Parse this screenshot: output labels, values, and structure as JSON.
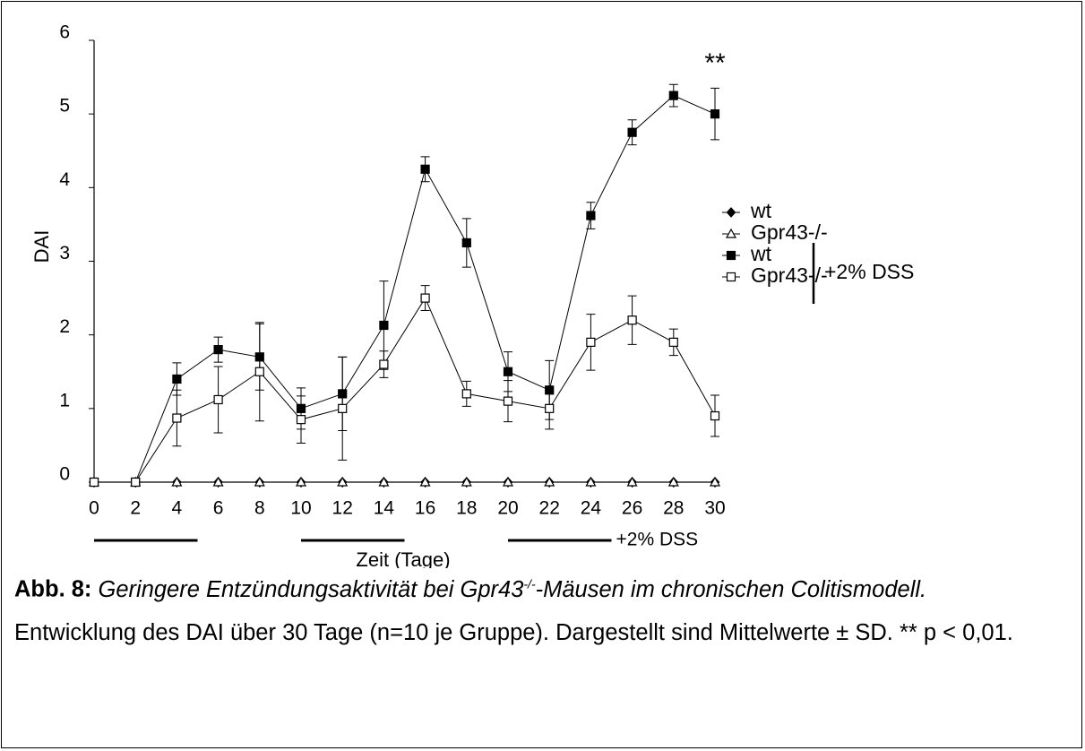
{
  "chart_data": {
    "type": "line",
    "y_label": "DAI",
    "x_label": "Zeit (Tage)",
    "x": [
      0,
      2,
      4,
      6,
      8,
      10,
      12,
      14,
      16,
      18,
      20,
      22,
      24,
      26,
      28,
      30
    ],
    "xlim": [
      0,
      30
    ],
    "ylim": [
      0,
      6
    ],
    "xticks": [
      0,
      2,
      4,
      6,
      8,
      10,
      12,
      14,
      16,
      18,
      20,
      22,
      24,
      26,
      28,
      30
    ],
    "yticks": [
      0,
      1,
      2,
      3,
      4,
      5,
      6
    ],
    "series": [
      {
        "name": "wt",
        "marker": "diamond",
        "filled": true,
        "color": "#000000",
        "values": [
          0,
          0,
          0,
          0,
          0,
          0,
          0,
          0,
          0,
          0,
          0,
          0,
          0,
          0,
          0,
          0
        ]
      },
      {
        "name": "Gpr43-/-",
        "marker": "triangle",
        "filled": false,
        "color": "#000000",
        "values": [
          0,
          0,
          0,
          0,
          0,
          0,
          0,
          0,
          0,
          0,
          0,
          0,
          0,
          0,
          0,
          0
        ]
      },
      {
        "name": "wt",
        "marker": "square",
        "filled": true,
        "color": "#000000",
        "values": [
          0,
          0,
          1.4,
          1.8,
          1.7,
          1.0,
          1.2,
          2.13,
          4.25,
          3.25,
          1.5,
          1.25,
          3.62,
          4.75,
          5.25,
          5.0
        ],
        "errors": [
          0,
          0,
          0.22,
          0.17,
          0.45,
          0.28,
          0.5,
          0.6,
          0.17,
          0.33,
          0.27,
          0.4,
          0.18,
          0.17,
          0.15,
          0.35
        ]
      },
      {
        "name": "Gpr43-/-",
        "marker": "square",
        "filled": false,
        "color": "#000000",
        "values": [
          0,
          0,
          0.87,
          1.12,
          1.5,
          0.85,
          1.0,
          1.6,
          2.5,
          1.2,
          1.1,
          1.0,
          1.9,
          2.2,
          1.9,
          0.9
        ],
        "errors": [
          0,
          0,
          0.38,
          0.45,
          0.67,
          0.32,
          0.7,
          0.18,
          0.17,
          0.17,
          0.28,
          0.28,
          0.38,
          0.33,
          0.18,
          0.28
        ]
      }
    ],
    "legend_group": {
      "label": "+2% DSS",
      "series": [
        2,
        3
      ]
    },
    "annotation": {
      "text": "**",
      "x": 30
    },
    "treatment": {
      "label": "+2% DSS",
      "periods": [
        [
          0,
          5
        ],
        [
          10,
          15
        ],
        [
          20,
          25
        ]
      ]
    }
  },
  "caption": {
    "label": "Abb. 8:",
    "title": "Geringere Entzündungsaktivität bei Gpr43",
    "superscript": "-/-",
    "title_end": "-Mäusen im chronischen Colitismodell.",
    "text": "Entwicklung des DAI über 30 Tage (n=10 je Gruppe). Dargestellt sind Mittelwerte ± SD. ** p < 0,01."
  }
}
